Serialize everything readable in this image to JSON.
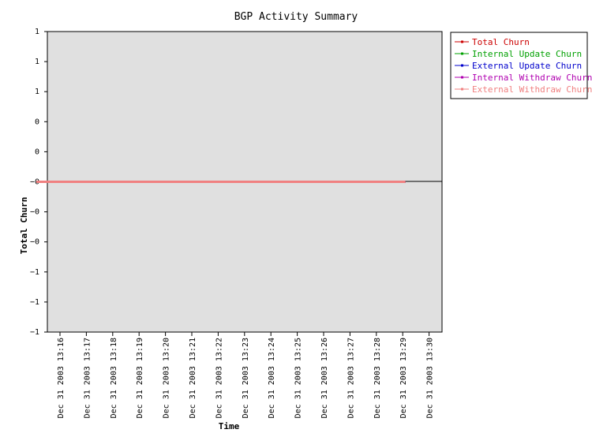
{
  "chart_data": {
    "type": "line",
    "title": "BGP Activity Summary",
    "xlabel": "Time",
    "ylabel": "Total Churn",
    "x": [
      "Dec 31 2003 13:16",
      "Dec 31 2003 13:17",
      "Dec 31 2003 13:18",
      "Dec 31 2003 13:19",
      "Dec 31 2003 13:20",
      "Dec 31 2003 13:21",
      "Dec 31 2003 13:22",
      "Dec 31 2003 13:23",
      "Dec 31 2003 13:24",
      "Dec 31 2003 13:25",
      "Dec 31 2003 13:26",
      "Dec 31 2003 13:27",
      "Dec 31 2003 13:28",
      "Dec 31 2003 13:29",
      "Dec 31 2003 13:30"
    ],
    "y_tick_labels": [
      "1",
      "1",
      "1",
      "0",
      "0",
      "−0",
      "−0",
      "−0",
      "−1",
      "−1",
      "−1"
    ],
    "ylim": [
      -1,
      1
    ],
    "grid": false,
    "background": "#e0e0e0",
    "legend_position": "top-right, outside plot",
    "series": [
      {
        "name": "Total Churn",
        "color": "#cc0000",
        "values": [
          0,
          0,
          0,
          0,
          0,
          0,
          0,
          0,
          0,
          0,
          0,
          0,
          0,
          0,
          0
        ]
      },
      {
        "name": "Internal Update Churn",
        "color": "#00a000",
        "values": [
          0,
          0,
          0,
          0,
          0,
          0,
          0,
          0,
          0,
          0,
          0,
          0,
          0,
          0,
          0
        ]
      },
      {
        "name": "External Update Churn",
        "color": "#0000cc",
        "values": [
          0,
          0,
          0,
          0,
          0,
          0,
          0,
          0,
          0,
          0,
          0,
          0,
          0,
          0,
          0
        ]
      },
      {
        "name": "Internal Withdraw Churn",
        "color": "#b000b0",
        "values": [
          0,
          0,
          0,
          0,
          0,
          0,
          0,
          0,
          0,
          0,
          0,
          0,
          0,
          0,
          0
        ]
      },
      {
        "name": "External Withdraw Churn",
        "color": "#f08080",
        "values": [
          0,
          0,
          0,
          0,
          0,
          0,
          0,
          0,
          0,
          0,
          0,
          0,
          0,
          0,
          0
        ]
      }
    ]
  }
}
